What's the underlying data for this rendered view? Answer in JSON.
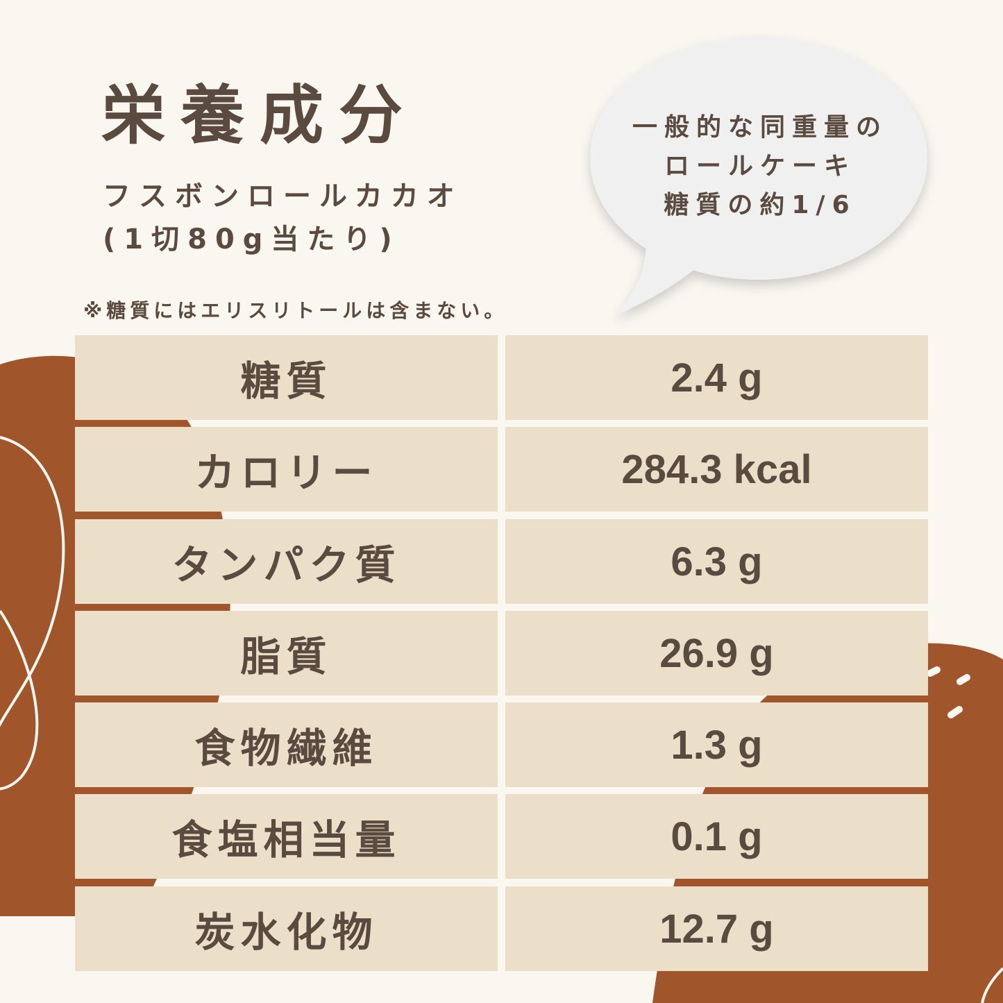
{
  "title": "栄養成分",
  "product": {
    "name": "フスボンロールカカオ",
    "serving": "(1切80g当たり)"
  },
  "note": "※糖質にはエリスリトールは含まない。",
  "bubble": {
    "lines": [
      "一般的な同重量の",
      "ロールケーキ",
      "糖質の約1/6"
    ]
  },
  "colors": {
    "background": "#faf7f1",
    "text": "#5b4a3f",
    "cell": "#ecdfca",
    "accent": "#a0552a",
    "bubble": "#f0f0f0"
  },
  "nutrition": [
    {
      "label": "糖質",
      "value": "2.4 g"
    },
    {
      "label": "カロリー",
      "value": "284.3 kcal"
    },
    {
      "label": "タンパク質",
      "value": "6.3 g"
    },
    {
      "label": "脂質",
      "value": "26.9 g"
    },
    {
      "label": "食物繊維",
      "value": "1.3 g"
    },
    {
      "label": "食塩相当量",
      "value": "0.1 g"
    },
    {
      "label": "炭水化物",
      "value": "12.7 g"
    }
  ]
}
